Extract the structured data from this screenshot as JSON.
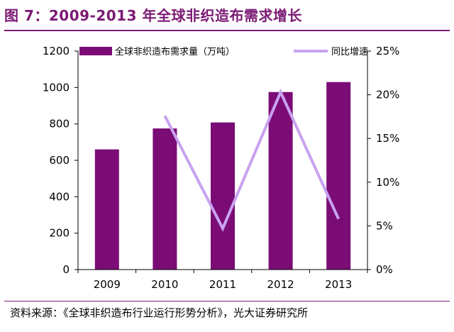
{
  "figure_title": "图 7：2009-2013 年全球非织造布需求增长",
  "source_note": "资料来源：《全球非织造布行业运行形势分析》，光大证券研究所",
  "colors": {
    "bar": "#7b0c75",
    "line": "#c9a2f0",
    "title": "#7b1a74",
    "axis": "#000000"
  },
  "chart_data": {
    "type": "bar",
    "categories": [
      "2009",
      "2010",
      "2011",
      "2012",
      "2013"
    ],
    "series": [
      {
        "name": "全球非织造布需求量（万吨）",
        "type": "bar",
        "axis": "left",
        "values": [
          660,
          775,
          808,
          975,
          1030
        ]
      },
      {
        "name": "同比增速",
        "type": "line",
        "axis": "right",
        "values": [
          null,
          0.176,
          0.047,
          0.203,
          0.058
        ]
      }
    ],
    "y_left": {
      "lim": [
        0,
        1200
      ],
      "ticks": [
        "0",
        "200",
        "400",
        "600",
        "800",
        "1000",
        "1200"
      ]
    },
    "y_right": {
      "lim": [
        0,
        0.25
      ],
      "ticks": [
        "0%",
        "5%",
        "10%",
        "15%",
        "20%",
        "25%"
      ]
    },
    "legend_position": "top",
    "grid": false
  }
}
